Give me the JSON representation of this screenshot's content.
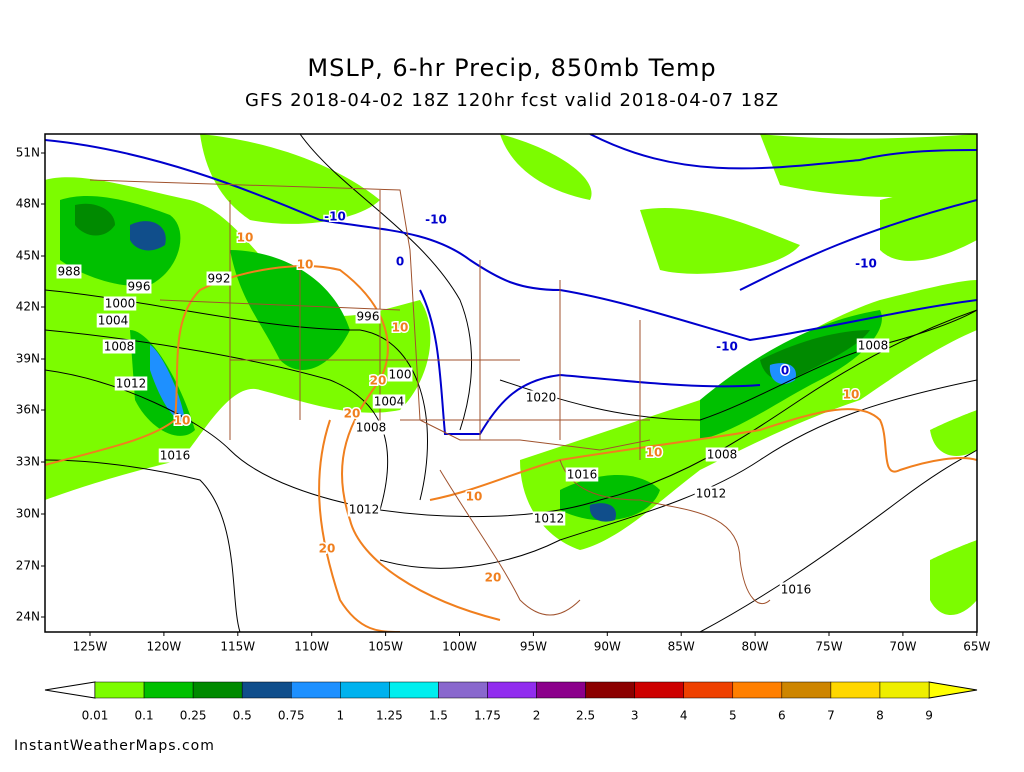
{
  "header": {
    "title": "MSLP, 6-hr Precip, 850mb Temp",
    "subtitle": "GFS 2018-04-02 18Z 120hr fcst valid 2018-04-07 18Z"
  },
  "map": {
    "lat_labels": [
      "51N",
      "48N",
      "45N",
      "42N",
      "39N",
      "36N",
      "33N",
      "30N",
      "27N",
      "24N"
    ],
    "lon_labels": [
      "125W",
      "120W",
      "115W",
      "110W",
      "105W",
      "100W",
      "95W",
      "90W",
      "85W",
      "80W",
      "75W",
      "70W",
      "65W"
    ],
    "pressure_labels": [
      "988",
      "996",
      "992",
      "1000",
      "1004",
      "1008",
      "1012",
      "1016",
      "996",
      "100",
      "1004",
      "1008",
      "1012",
      "1020",
      "1016",
      "1012",
      "1012",
      "1008",
      "1008",
      "1016"
    ],
    "cold_temp_labels": [
      "-10",
      "-10",
      "0",
      "-10",
      "-10",
      "0"
    ],
    "warm_temp_labels": [
      "10",
      "10",
      "10",
      "20",
      "20",
      "10",
      "10",
      "20",
      "20",
      "10",
      "10"
    ]
  },
  "legend": {
    "labels": [
      "0.01",
      "0.1",
      "0.25",
      "0.5",
      "0.75",
      "1",
      "1.25",
      "1.5",
      "1.75",
      "2",
      "2.5",
      "3",
      "4",
      "5",
      "6",
      "7",
      "8",
      "9"
    ],
    "colors": [
      "#7cfc00",
      "#00c000",
      "#008a00",
      "#104e8b",
      "#1e90ff",
      "#00b2ee",
      "#00eeee",
      "#8968cd",
      "#912cee",
      "#8b008b",
      "#8b0000",
      "#cd0000",
      "#ee4000",
      "#ff7f00",
      "#cd8500",
      "#ffd700",
      "#eeee00"
    ]
  },
  "footer": "InstantWeatherMaps.com"
}
